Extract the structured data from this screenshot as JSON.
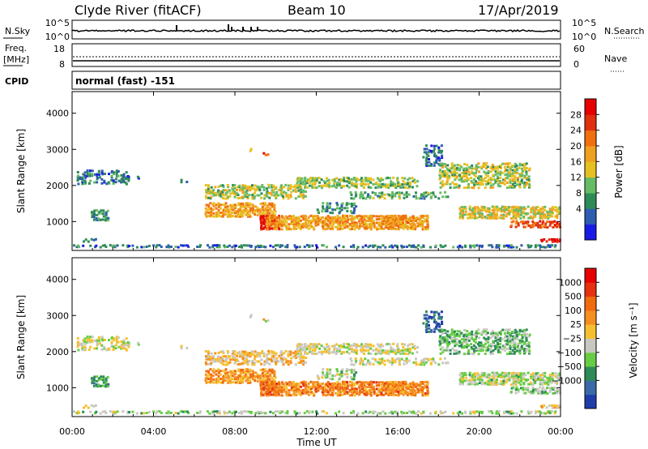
{
  "header": {
    "station": "Clyde River (fitACF)",
    "beam": "Beam 10",
    "date": "17/Apr/2019"
  },
  "top_panels": {
    "nsky": {
      "label": "N.Sky",
      "ticks": [
        "10^5",
        "10^0"
      ],
      "right_label": "N.Search",
      "right_ticks": [
        "10^5",
        "10^0"
      ]
    },
    "freq": {
      "label_line1": "Freq.",
      "label_line2": "[MHz]",
      "ticks": [
        "18",
        "8"
      ],
      "right_label": "Nave",
      "right_ticks": [
        "60",
        "0"
      ]
    },
    "cpid": {
      "label": "CPID",
      "text": "normal (fast) -151"
    }
  },
  "chart_data": [
    {
      "type": "heatmap",
      "name": "power-panel",
      "xlabel": "",
      "ylabel": "Slant Range [km]",
      "xlim": [
        0,
        24
      ],
      "ylim": [
        200,
        4600
      ],
      "yticks": [
        "1000",
        "2000",
        "3000",
        "4000"
      ],
      "colorbar": {
        "label": "Power [dB]",
        "ticks": [
          "28",
          "24",
          "20",
          "16",
          "12",
          "8",
          "4"
        ],
        "colors": [
          "#1a1ae6",
          "#2d5cb0",
          "#2e8b57",
          "#66bb66",
          "#e6c020",
          "#f0a020",
          "#f07010",
          "#e03010",
          "#e60000"
        ]
      }
    },
    {
      "type": "heatmap",
      "name": "velocity-panel",
      "xlabel": "Time UT",
      "ylabel": "Slant Range [km]",
      "xlim": [
        0,
        24
      ],
      "ylim": [
        200,
        4600
      ],
      "yticks": [
        "1000",
        "2000",
        "3000",
        "4000"
      ],
      "xticks": [
        "00:00",
        "04:00",
        "08:00",
        "12:00",
        "16:00",
        "20:00",
        "00:00"
      ],
      "colorbar": {
        "label": "Velocity [m s⁻¹]",
        "ticks": [
          "1000",
          "500",
          "100",
          "25",
          "−25",
          "−100",
          "−500",
          "−1000"
        ],
        "colors": [
          "#1f3ca8",
          "#3a6aa8",
          "#2e8b57",
          "#66cc44",
          "#c8c8c0",
          "#f5c030",
          "#f59020",
          "#f06a10",
          "#e63010",
          "#e60000"
        ]
      }
    }
  ]
}
